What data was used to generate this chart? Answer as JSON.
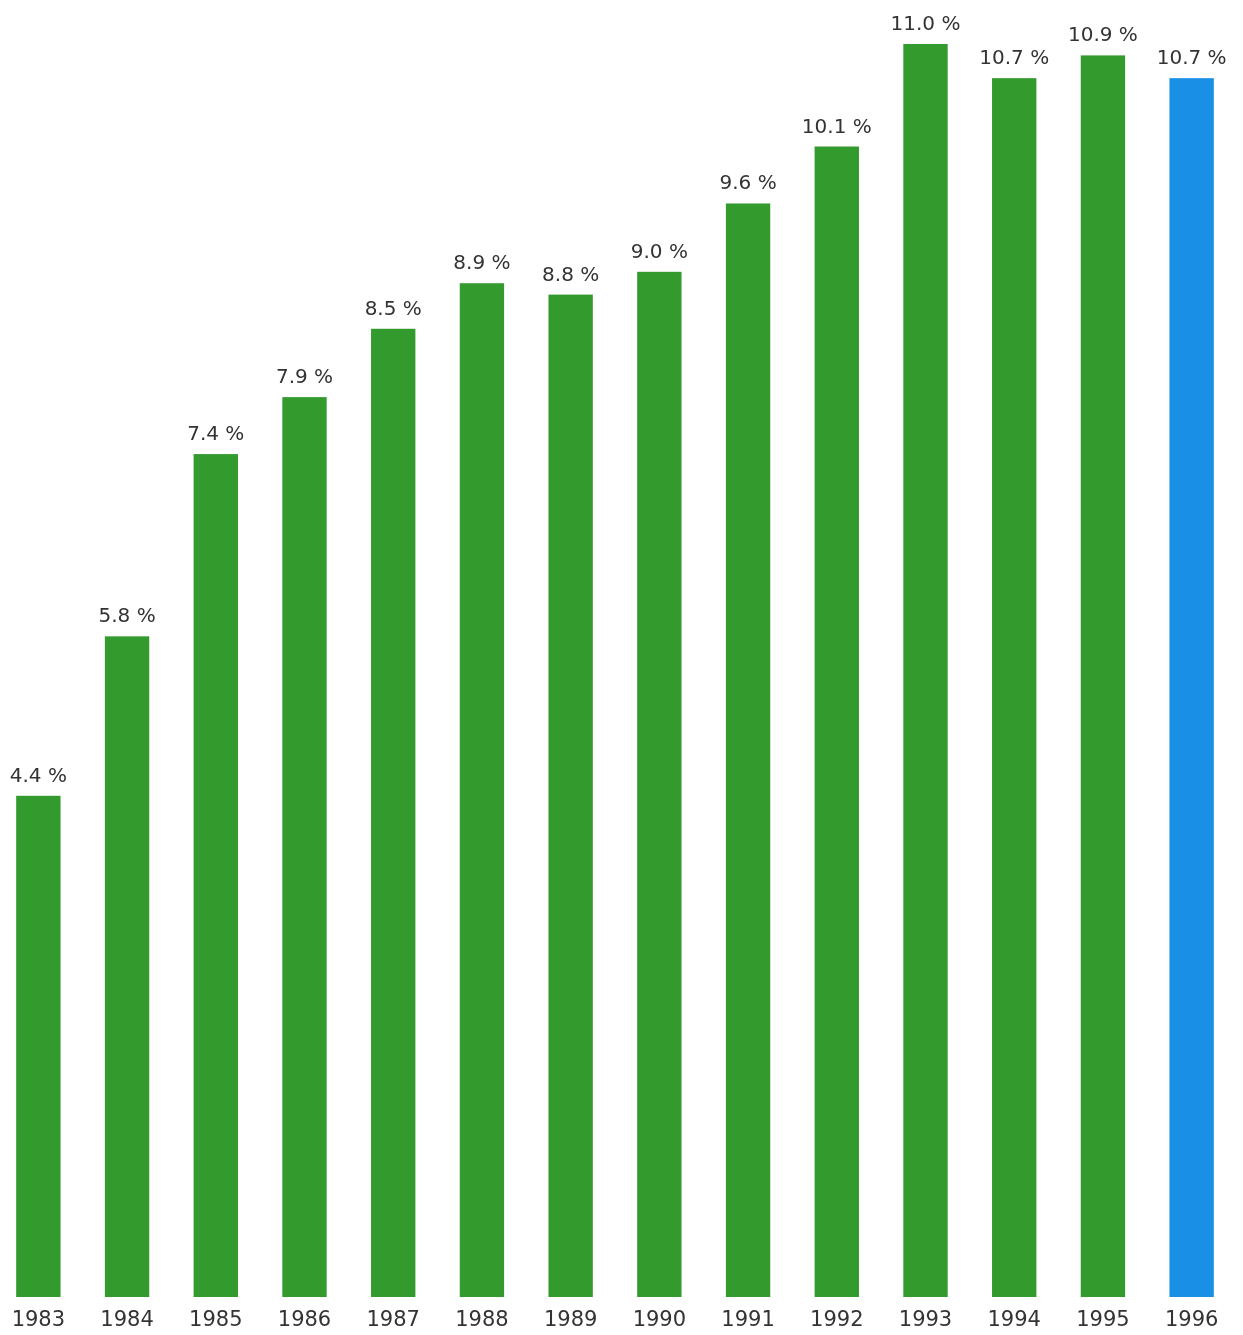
{
  "chart_data": {
    "type": "bar",
    "categories": [
      "1983",
      "1984",
      "1985",
      "1986",
      "1987",
      "1988",
      "1989",
      "1990",
      "1991",
      "1992",
      "1993",
      "1994",
      "1995",
      "1996"
    ],
    "values": [
      4.4,
      5.8,
      7.4,
      7.9,
      8.5,
      8.9,
      8.8,
      9.0,
      9.6,
      10.1,
      11.0,
      10.7,
      10.9,
      10.7
    ],
    "value_labels": [
      "4.4 %",
      "5.8 %",
      "7.4 %",
      "7.9 %",
      "8.5 %",
      "8.9 %",
      "8.8 %",
      "9.0 %",
      "9.6 %",
      "10.1 %",
      "11.0 %",
      "10.7 %",
      "10.9 %",
      "10.7 %"
    ],
    "colors": [
      "#339a2e",
      "#339a2e",
      "#339a2e",
      "#339a2e",
      "#339a2e",
      "#339a2e",
      "#339a2e",
      "#339a2e",
      "#339a2e",
      "#339a2e",
      "#339a2e",
      "#339a2e",
      "#339a2e",
      "#1a8fe6"
    ],
    "grid": false
  }
}
